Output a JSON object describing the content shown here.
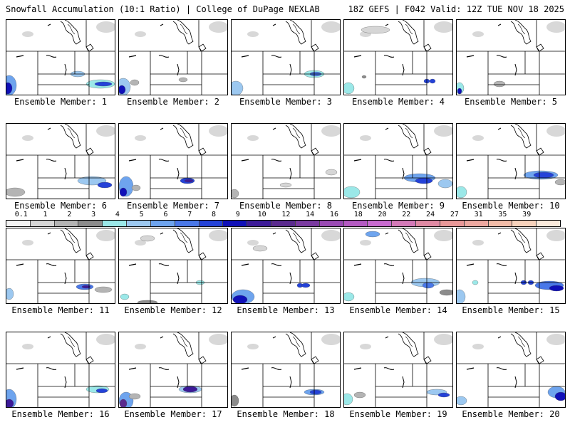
{
  "header": {
    "left": "Snowfall Accumulation (10:1 Ratio) | College of DuPage NEXLAB",
    "right": "18Z GEFS | F042 Valid: 12Z TUE NOV 18 2025"
  },
  "caption_prefix": "Ensemble Member: ",
  "members": [
    "1",
    "2",
    "3",
    "4",
    "5",
    "6",
    "7",
    "8",
    "9",
    "10",
    "11",
    "12",
    "13",
    "14",
    "15",
    "16",
    "17",
    "18",
    "19",
    "20"
  ],
  "colorbar": {
    "labels": [
      "0.1",
      "1",
      "2",
      "3",
      "4",
      "5",
      "6",
      "7",
      "8",
      "9",
      "10",
      "12",
      "14",
      "16",
      "18",
      "20",
      "22",
      "24",
      "27",
      "31",
      "35",
      "39"
    ],
    "colors": [
      "#f4f4f4",
      "#d6d6d6",
      "#b4b4b4",
      "#8c8c8c",
      "#9be8e8",
      "#9cc8f0",
      "#6ea4ee",
      "#4a78e8",
      "#2442d8",
      "#1010b8",
      "#3c1a98",
      "#5a2a8e",
      "#7a3aa0",
      "#9a4ab4",
      "#b45ac2",
      "#c86ad0",
      "#d47ab8",
      "#e08aa4",
      "#e89898",
      "#eca8a0",
      "#f2bca8",
      "#f6d2bc",
      "#faeadc"
    ]
  },
  "colors": {
    "land": "#ffffff",
    "border": "#000000",
    "cloud": "#d8d8d8"
  }
}
